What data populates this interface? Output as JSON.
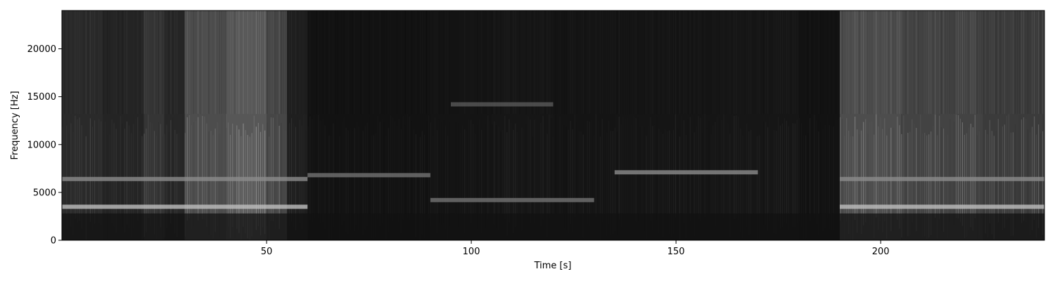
{
  "chart_data": {
    "type": "heatmap",
    "title": "",
    "xlabel": "Time [s]",
    "ylabel": "Frequency [Hz]",
    "xlim": [
      0,
      240
    ],
    "ylim": [
      0,
      24000
    ],
    "x_ticks": [
      {
        "value": 50,
        "label": "50"
      },
      {
        "value": 100,
        "label": "100"
      },
      {
        "value": 150,
        "label": "150"
      },
      {
        "value": 200,
        "label": "200"
      }
    ],
    "y_ticks": [
      {
        "value": 0,
        "label": "0"
      },
      {
        "value": 5000,
        "label": "5000"
      },
      {
        "value": 10000,
        "label": "10000"
      },
      {
        "value": 15000,
        "label": "15000"
      },
      {
        "value": 20000,
        "label": "20000"
      }
    ],
    "colormap": "gray",
    "grid": false,
    "segments": [
      {
        "t0": 0,
        "t1": 10,
        "level": 0.3
      },
      {
        "t0": 10,
        "t1": 20,
        "level": 0.26
      },
      {
        "t0": 20,
        "t1": 25,
        "level": 0.38
      },
      {
        "t0": 25,
        "t1": 30,
        "level": 0.28
      },
      {
        "t0": 30,
        "t1": 40,
        "level": 0.55
      },
      {
        "t0": 40,
        "t1": 50,
        "level": 0.62
      },
      {
        "t0": 50,
        "t1": 55,
        "level": 0.5
      },
      {
        "t0": 55,
        "t1": 60,
        "level": 0.22
      },
      {
        "t0": 60,
        "t1": 90,
        "level": 0.13
      },
      {
        "t0": 90,
        "t1": 105,
        "level": 0.14
      },
      {
        "t0": 105,
        "t1": 120,
        "level": 0.16
      },
      {
        "t0": 120,
        "t1": 135,
        "level": 0.14
      },
      {
        "t0": 135,
        "t1": 160,
        "level": 0.15
      },
      {
        "t0": 160,
        "t1": 180,
        "level": 0.16
      },
      {
        "t0": 180,
        "t1": 190,
        "level": 0.13
      },
      {
        "t0": 190,
        "t1": 205,
        "level": 0.55
      },
      {
        "t0": 205,
        "t1": 225,
        "level": 0.48
      },
      {
        "t0": 225,
        "t1": 240,
        "level": 0.42
      }
    ],
    "bands": [
      {
        "t0": 0,
        "t1": 60,
        "freq": 3500,
        "level": 0.75
      },
      {
        "t0": 0,
        "t1": 60,
        "freq": 6400,
        "level": 0.55
      },
      {
        "t0": 60,
        "t1": 90,
        "freq": 6800,
        "level": 0.45
      },
      {
        "t0": 90,
        "t1": 130,
        "freq": 4200,
        "level": 0.45
      },
      {
        "t0": 95,
        "t1": 120,
        "freq": 14200,
        "level": 0.35
      },
      {
        "t0": 135,
        "t1": 170,
        "freq": 7100,
        "level": 0.55
      },
      {
        "t0": 190,
        "t1": 240,
        "freq": 3500,
        "level": 0.75
      },
      {
        "t0": 190,
        "t1": 240,
        "freq": 6400,
        "level": 0.55
      }
    ]
  }
}
